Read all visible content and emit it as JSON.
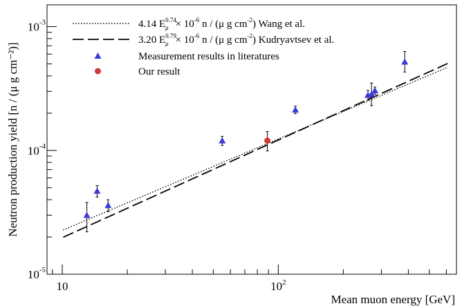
{
  "chart_data": {
    "type": "scatter",
    "x_scale": "log",
    "y_scale": "log",
    "xlim": [
      8.5,
      668
    ],
    "ylim": [
      1e-05,
      0.0015
    ],
    "xlabel": "Mean muon energy [GeV]",
    "ylabel": "Neutron production yield [n / (μ g cm⁻²)]",
    "x_ticks": [
      {
        "value": 10,
        "base": "10",
        "exp": ""
      },
      {
        "value": 100,
        "base": "10",
        "exp": "2"
      }
    ],
    "y_ticks": [
      {
        "value": 1e-05,
        "base": "10",
        "exp": "-5"
      },
      {
        "value": 0.0001,
        "base": "10",
        "exp": "-4"
      },
      {
        "value": 0.001,
        "base": "10",
        "exp": "-3"
      }
    ],
    "legend_position": "top-left",
    "legend": [
      {
        "key": "wang",
        "pre": "4.14 E",
        "sub": "μ",
        "sup": "0.74",
        "post": "× 10",
        "sup2": "-6",
        "post2": " n / (μ g cm",
        "sup3": "-2",
        "post3": ") Wang et al."
      },
      {
        "key": "kudr",
        "pre": "3.20 E",
        "sub": "μ",
        "sup": "0.79",
        "post": "× 10",
        "sup2": "-6",
        "post2": " n / (μ g cm",
        "sup3": "-2",
        "post3": ") Kudryavtsev et al."
      },
      {
        "key": "lit",
        "text": "Measurement results in literatures"
      },
      {
        "key": "ours",
        "text": "Our result"
      }
    ],
    "series": [
      {
        "key": "wang",
        "kind": "line",
        "style": "dotted",
        "x": [
          10.1,
          610
        ],
        "y": [
          2.28e-05,
          0.00047
        ]
      },
      {
        "key": "kudr",
        "kind": "line",
        "style": "dashed",
        "x": [
          10.1,
          610
        ],
        "y": [
          1.99e-05,
          0.000505
        ]
      },
      {
        "key": "lit",
        "kind": "points",
        "marker": "triangle",
        "color": "#3a3ad6",
        "points": [
          {
            "x": 13.0,
            "y": 3e-05,
            "lo": 2.2e-05,
            "hi": 3.8e-05
          },
          {
            "x": 14.5,
            "y": 4.7e-05,
            "lo": 4.2e-05,
            "hi": 5.2e-05
          },
          {
            "x": 16.3,
            "y": 3.6e-05,
            "lo": 3.2e-05,
            "hi": 4e-05
          },
          {
            "x": 55,
            "y": 0.00012,
            "lo": 0.00011,
            "hi": 0.00013
          },
          {
            "x": 120,
            "y": 0.000213,
            "lo": 0.000198,
            "hi": 0.000228
          },
          {
            "x": 260,
            "y": 0.00028,
            "lo": 0.000255,
            "hi": 0.000305
          },
          {
            "x": 270,
            "y": 0.000285,
            "lo": 0.00023,
            "hi": 0.00035
          },
          {
            "x": 280,
            "y": 0.000305,
            "lo": 0.000285,
            "hi": 0.000325
          },
          {
            "x": 385,
            "y": 0.00052,
            "lo": 0.00043,
            "hi": 0.00063
          }
        ]
      },
      {
        "key": "ours",
        "kind": "points",
        "marker": "circle",
        "color": "#d03a3a",
        "points": [
          {
            "x": 89,
            "y": 0.00012,
            "lo": 9.9e-05,
            "hi": 0.000142
          }
        ]
      }
    ]
  }
}
